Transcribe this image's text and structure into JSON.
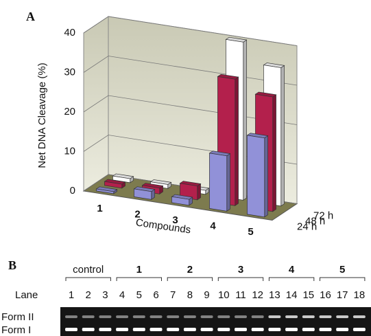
{
  "chart_data": {
    "type": "bar3d",
    "label": "A",
    "y_label": "Net DNA Cleavage (%)",
    "x_label": "Compounds",
    "categories": [
      "1",
      "2",
      "3",
      "4",
      "5"
    ],
    "series": [
      {
        "name": "24 h",
        "color": "#9191d8",
        "values": [
          0.5,
          2,
          1.5,
          14,
          20
        ]
      },
      {
        "name": "48 h",
        "color": "#b3204c",
        "values": [
          1,
          1.5,
          3.5,
          32,
          29
        ]
      },
      {
        "name": "72 h",
        "color": "#ffffff",
        "values": [
          1,
          1,
          1,
          40,
          35
        ]
      }
    ],
    "ylim": [
      0,
      40
    ],
    "yticks": [
      0,
      10,
      20,
      30,
      40
    ],
    "grid": true
  },
  "gel": {
    "label": "B",
    "lane_title": "Lane",
    "groups": [
      "control",
      "1",
      "2",
      "3",
      "4",
      "5"
    ],
    "lanes": [
      1,
      2,
      3,
      4,
      5,
      6,
      7,
      8,
      9,
      10,
      11,
      12,
      13,
      14,
      15,
      16,
      17,
      18
    ],
    "bands": [
      "Form II",
      "Form I"
    ]
  }
}
